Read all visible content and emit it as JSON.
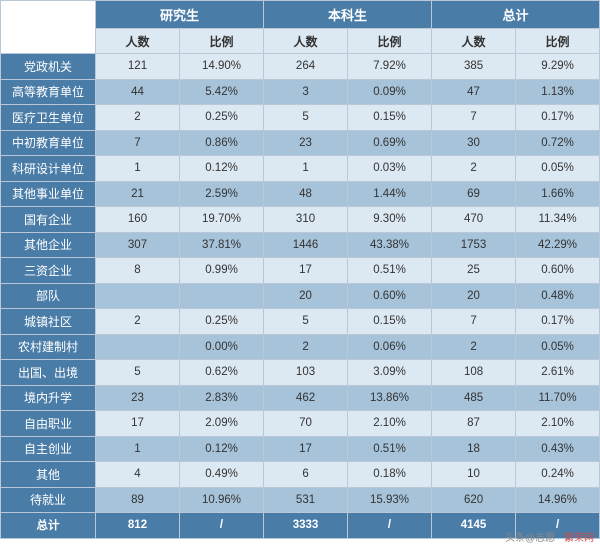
{
  "table": {
    "type": "table",
    "group_headers": [
      "研究生",
      "本科生",
      "总计"
    ],
    "sub_headers": [
      "人数",
      "比例",
      "人数",
      "比例",
      "人数",
      "比例"
    ],
    "rows": [
      {
        "label": "党政机关",
        "cells": [
          "121",
          "14.90%",
          "264",
          "7.92%",
          "385",
          "9.29%"
        ]
      },
      {
        "label": "高等教育单位",
        "cells": [
          "44",
          "5.42%",
          "3",
          "0.09%",
          "47",
          "1.13%"
        ]
      },
      {
        "label": "医疗卫生单位",
        "cells": [
          "2",
          "0.25%",
          "5",
          "0.15%",
          "7",
          "0.17%"
        ]
      },
      {
        "label": "中初教育单位",
        "cells": [
          "7",
          "0.86%",
          "23",
          "0.69%",
          "30",
          "0.72%"
        ]
      },
      {
        "label": "科研设计单位",
        "cells": [
          "1",
          "0.12%",
          "1",
          "0.03%",
          "2",
          "0.05%"
        ]
      },
      {
        "label": "其他事业单位",
        "cells": [
          "21",
          "2.59%",
          "48",
          "1.44%",
          "69",
          "1.66%"
        ]
      },
      {
        "label": "国有企业",
        "cells": [
          "160",
          "19.70%",
          "310",
          "9.30%",
          "470",
          "11.34%"
        ]
      },
      {
        "label": "其他企业",
        "cells": [
          "307",
          "37.81%",
          "1446",
          "43.38%",
          "1753",
          "42.29%"
        ]
      },
      {
        "label": "三资企业",
        "cells": [
          "8",
          "0.99%",
          "17",
          "0.51%",
          "25",
          "0.60%"
        ]
      },
      {
        "label": "部队",
        "cells": [
          "",
          "",
          "20",
          "0.60%",
          "20",
          "0.48%"
        ]
      },
      {
        "label": "城镇社区",
        "cells": [
          "2",
          "0.25%",
          "5",
          "0.15%",
          "7",
          "0.17%"
        ]
      },
      {
        "label": "农村建制村",
        "cells": [
          "",
          "0.00%",
          "2",
          "0.06%",
          "2",
          "0.05%"
        ]
      },
      {
        "label": "出国、出境",
        "cells": [
          "5",
          "0.62%",
          "103",
          "3.09%",
          "108",
          "2.61%"
        ]
      },
      {
        "label": "境内升学",
        "cells": [
          "23",
          "2.83%",
          "462",
          "13.86%",
          "485",
          "11.70%"
        ]
      },
      {
        "label": "自由职业",
        "cells": [
          "17",
          "2.09%",
          "70",
          "2.10%",
          "87",
          "2.10%"
        ]
      },
      {
        "label": "自主创业",
        "cells": [
          "1",
          "0.12%",
          "17",
          "0.51%",
          "18",
          "0.43%"
        ]
      },
      {
        "label": "其他",
        "cells": [
          "4",
          "0.49%",
          "6",
          "0.18%",
          "10",
          "0.24%"
        ]
      },
      {
        "label": "待就业",
        "cells": [
          "89",
          "10.96%",
          "531",
          "15.93%",
          "620",
          "14.96%"
        ]
      }
    ],
    "footer": {
      "label": "总计",
      "cells": [
        "812",
        "/",
        "3333",
        "/",
        "4145",
        "/"
      ]
    }
  },
  "watermark": {
    "part1": "头条@志愿",
    "part2": "繁荣网"
  },
  "colors": {
    "header_bg": "#4a7ca8",
    "header_text": "#ffffff",
    "stripe_light": "#dce8f2",
    "stripe_dark": "#a6c3da",
    "border": "#b8c8d8"
  }
}
